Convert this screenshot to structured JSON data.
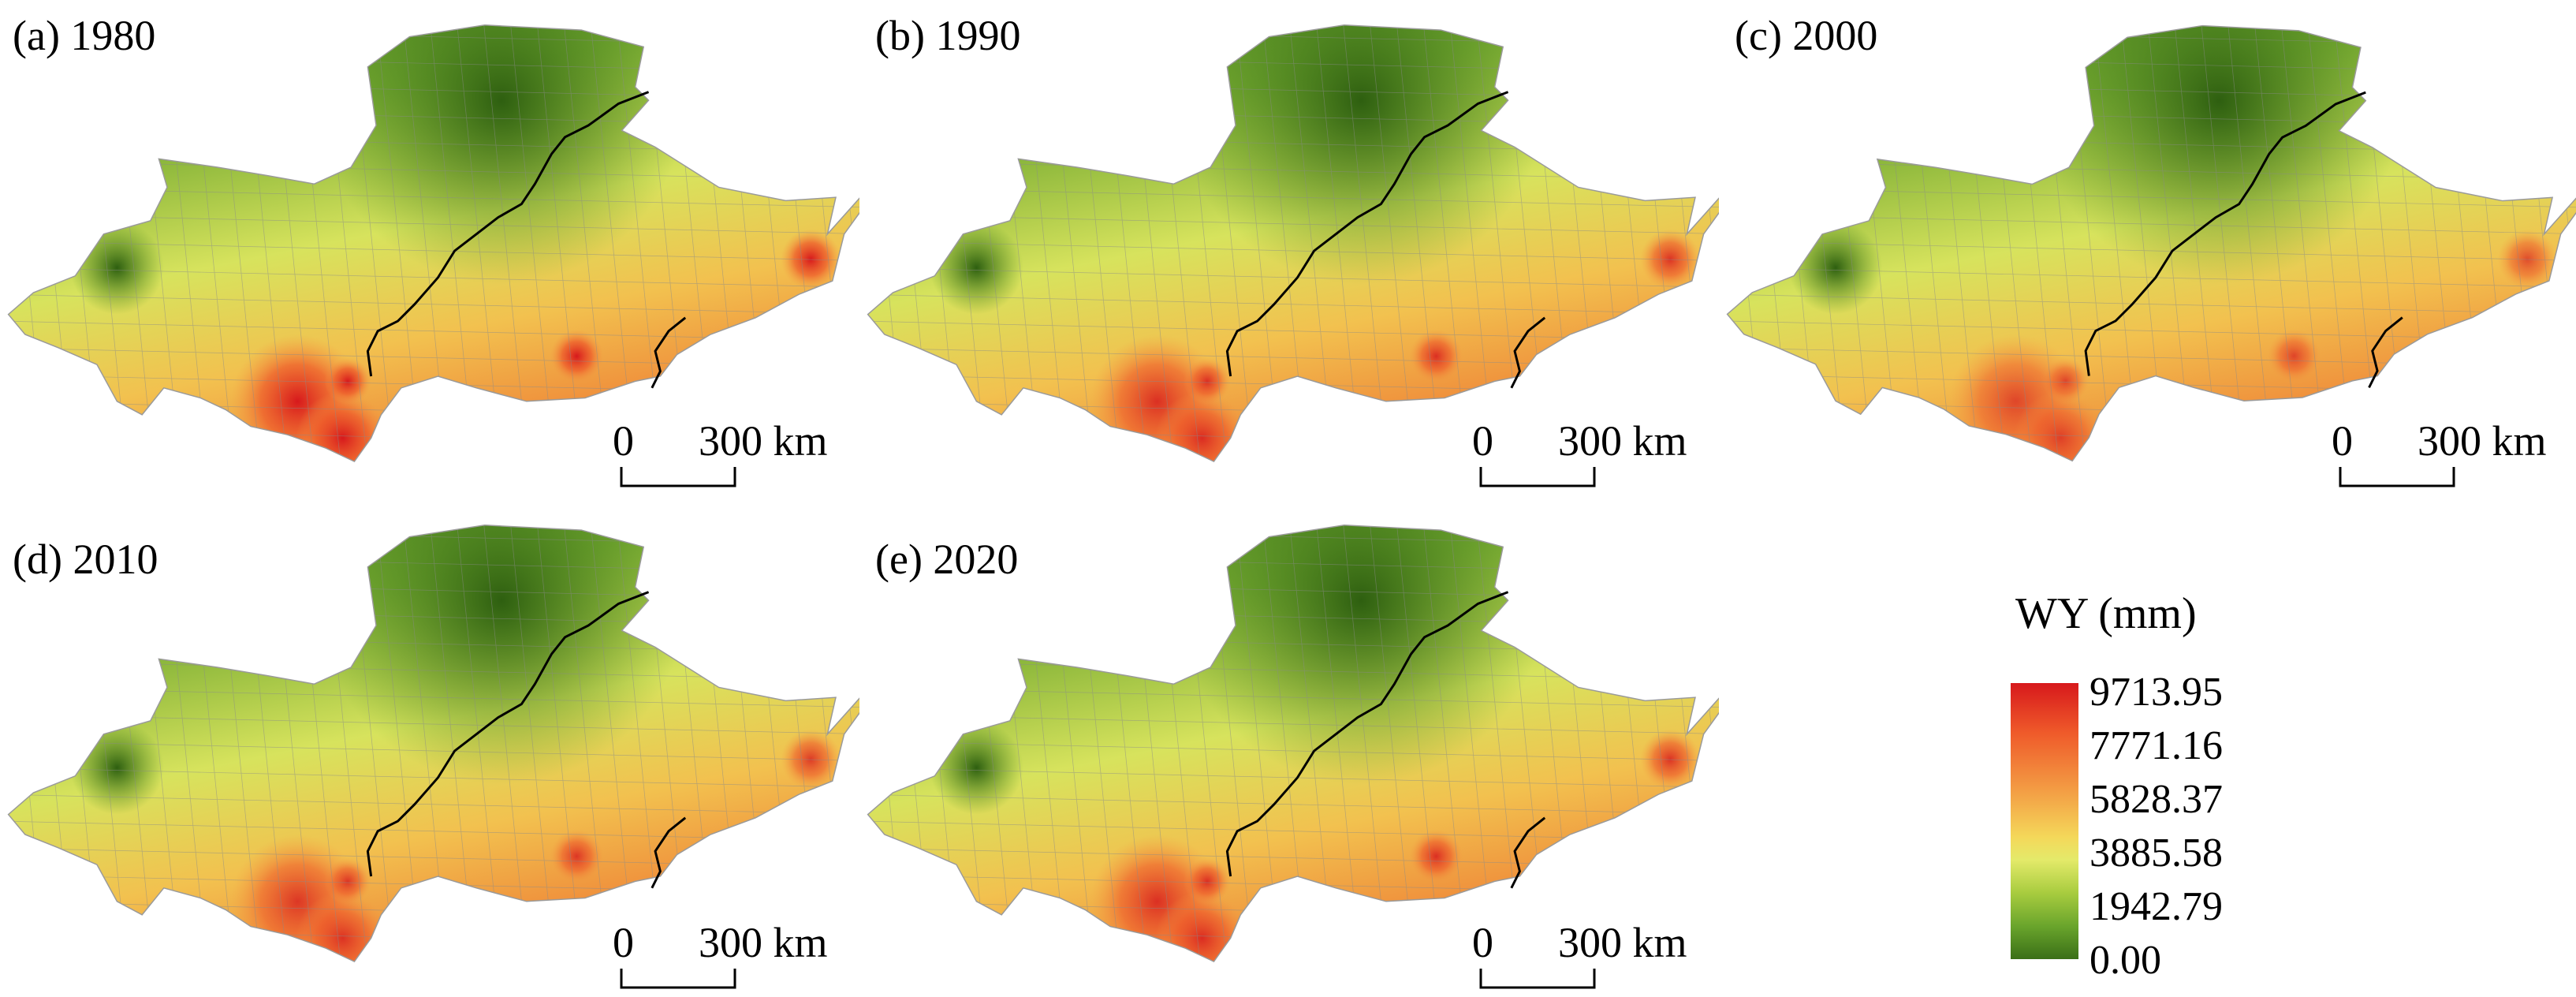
{
  "panels": [
    {
      "label": "(a) 1980",
      "intensity": 1.0
    },
    {
      "label": "(b) 1990",
      "intensity": 0.85
    },
    {
      "label": "(c) 2000",
      "intensity": 0.7
    },
    {
      "label": "(d) 2010",
      "intensity": 0.8
    },
    {
      "label": "(e) 2020",
      "intensity": 0.85
    }
  ],
  "scale_bar": {
    "zero": "0",
    "distance": "300 km"
  },
  "legend": {
    "title": "WY (mm)",
    "ticks": [
      "9713.95",
      "7771.16",
      "5828.37",
      "3885.58",
      "1942.79",
      "0.00"
    ],
    "colors": [
      "#d7191c",
      "#f39a43",
      "#e4ea6a",
      "#6aa52c",
      "#3a6f17"
    ]
  }
}
